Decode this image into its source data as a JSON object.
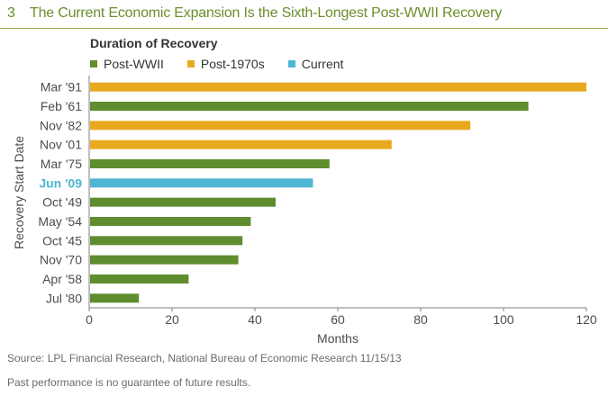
{
  "header": {
    "number": "3",
    "title": "The Current Economic Expansion Is the Sixth-Longest Post-WWII Recovery"
  },
  "legend": {
    "title": "Duration of Recovery",
    "items": [
      {
        "label": "Post-WWII",
        "color": "#5f8c2e"
      },
      {
        "label": "Post-1970s",
        "color": "#e8a91f"
      },
      {
        "label": "Current",
        "color": "#4fb6d3"
      }
    ]
  },
  "chart_data": {
    "type": "bar",
    "orientation": "horizontal",
    "ylabel": "Recovery Start Date",
    "xlabel": "Months",
    "xlim": [
      0,
      120
    ],
    "xticks": [
      0,
      20,
      40,
      60,
      80,
      100,
      120
    ],
    "grid": false,
    "categories": [
      "Mar '91",
      "Feb '61",
      "Nov '82",
      "Nov '01",
      "Mar '75",
      "Jun '09",
      "Oct '49",
      "May '54",
      "Oct '45",
      "Nov '70",
      "Apr '58",
      "Jul '80"
    ],
    "values": [
      120,
      106,
      92,
      73,
      58,
      54,
      45,
      39,
      37,
      36,
      24,
      12
    ],
    "groups": [
      "Post-1970s",
      "Post-WWII",
      "Post-1970s",
      "Post-1970s",
      "Post-WWII",
      "Current",
      "Post-WWII",
      "Post-WWII",
      "Post-WWII",
      "Post-WWII",
      "Post-WWII",
      "Post-WWII"
    ],
    "highlight_color": "#4fb6d3"
  },
  "footer": {
    "source": "Source: LPL Financial Research, National Bureau of Economic Research   11/15/13",
    "disclaimer": "Past performance is no guarantee of future results."
  }
}
